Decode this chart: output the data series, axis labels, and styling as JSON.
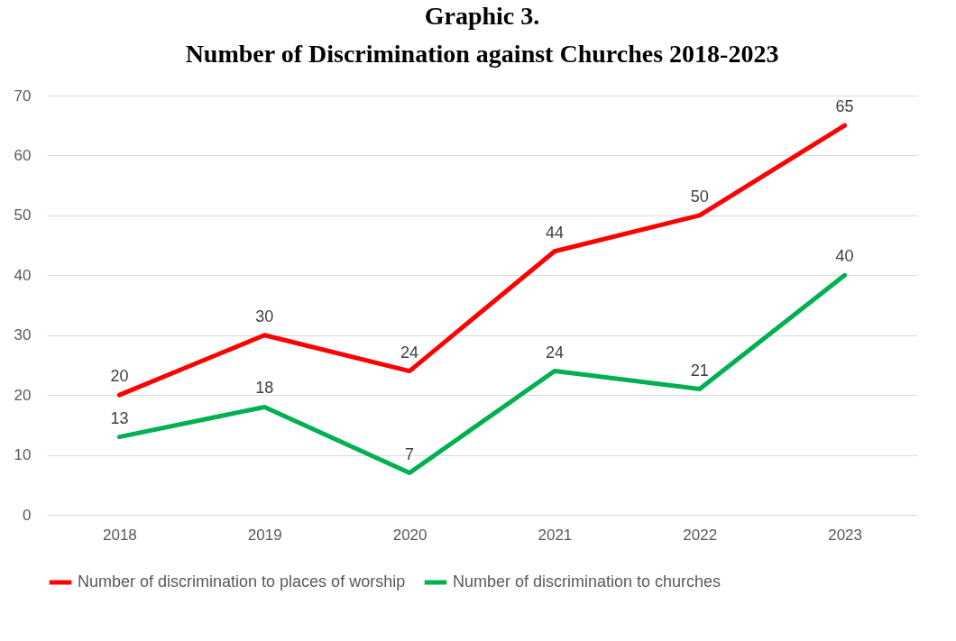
{
  "chart_data": {
    "type": "line",
    "title": "Graphic 3.",
    "subtitle": "Number of Discrimination against Churches 2018-2023",
    "categories": [
      "2018",
      "2019",
      "2020",
      "2021",
      "2022",
      "2023"
    ],
    "series": [
      {
        "name": "Number of discrimination to places of worship",
        "color": "#ff0000",
        "values": [
          20,
          30,
          24,
          44,
          50,
          65
        ]
      },
      {
        "name": "Number of discrimination to churches",
        "color": "#00b050",
        "values": [
          13,
          18,
          7,
          24,
          21,
          40
        ]
      }
    ],
    "ylim": [
      0,
      70
    ],
    "yticks": [
      0,
      10,
      20,
      30,
      40,
      50,
      60,
      70
    ],
    "grid": "y",
    "legend": "bottom",
    "data_labels": true
  }
}
